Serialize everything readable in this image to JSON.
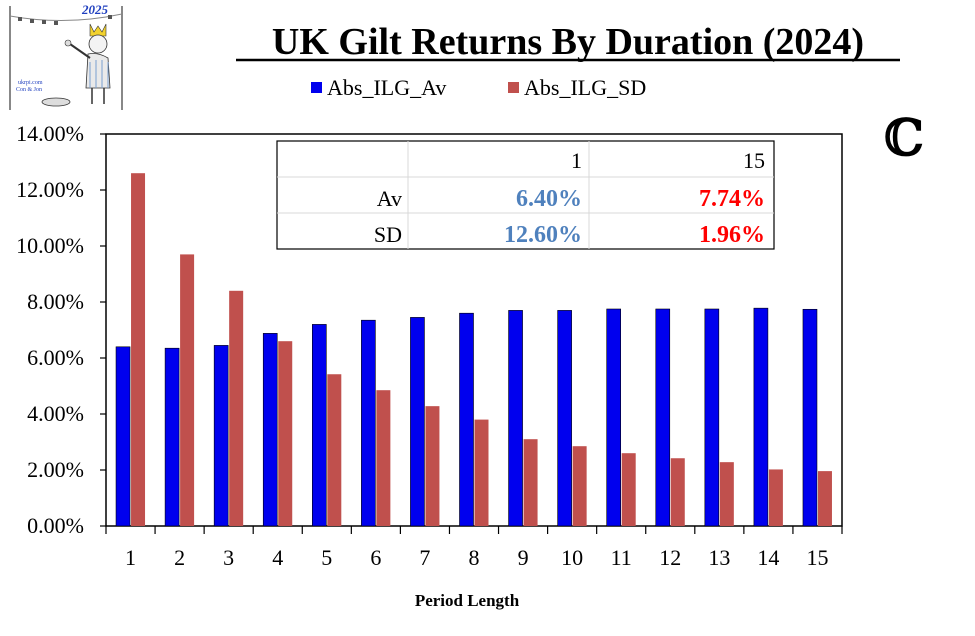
{
  "logo": {
    "year": "2025",
    "site": "ukrpi.com",
    "credit": "Con & Jon"
  },
  "copyright_mark": "ℂ",
  "chart_data": {
    "type": "bar",
    "title": "UK Gilt Returns By Duration (2024)",
    "xlabel": "Period Length",
    "ylabel": "",
    "categories": [
      "1",
      "2",
      "3",
      "4",
      "5",
      "6",
      "7",
      "8",
      "9",
      "10",
      "11",
      "12",
      "13",
      "14",
      "15"
    ],
    "ylim": [
      0,
      14
    ],
    "yticks": [
      "0.00%",
      "2.00%",
      "4.00%",
      "6.00%",
      "8.00%",
      "10.00%",
      "12.00%",
      "14.00%"
    ],
    "legend": "top",
    "series": [
      {
        "name": "Abs_ILG_Av",
        "color": "#0000ee",
        "values": [
          6.4,
          6.35,
          6.45,
          6.88,
          7.2,
          7.35,
          7.45,
          7.6,
          7.7,
          7.7,
          7.75,
          7.75,
          7.75,
          7.78,
          7.74
        ]
      },
      {
        "name": "Abs_ILG_SD",
        "color": "#c0504d",
        "values": [
          12.6,
          9.7,
          8.4,
          6.6,
          5.42,
          4.85,
          4.28,
          3.8,
          3.1,
          2.85,
          2.6,
          2.42,
          2.28,
          2.02,
          1.96
        ]
      }
    ],
    "table": {
      "header": [
        "",
        "1",
        "15"
      ],
      "rows": [
        {
          "label": "Av",
          "values": [
            "6.40%",
            "7.74%"
          ]
        },
        {
          "label": "SD",
          "values": [
            "12.60%",
            "1.96%"
          ]
        }
      ],
      "colors": [
        "#4f81bd",
        "#ff0000"
      ]
    }
  }
}
